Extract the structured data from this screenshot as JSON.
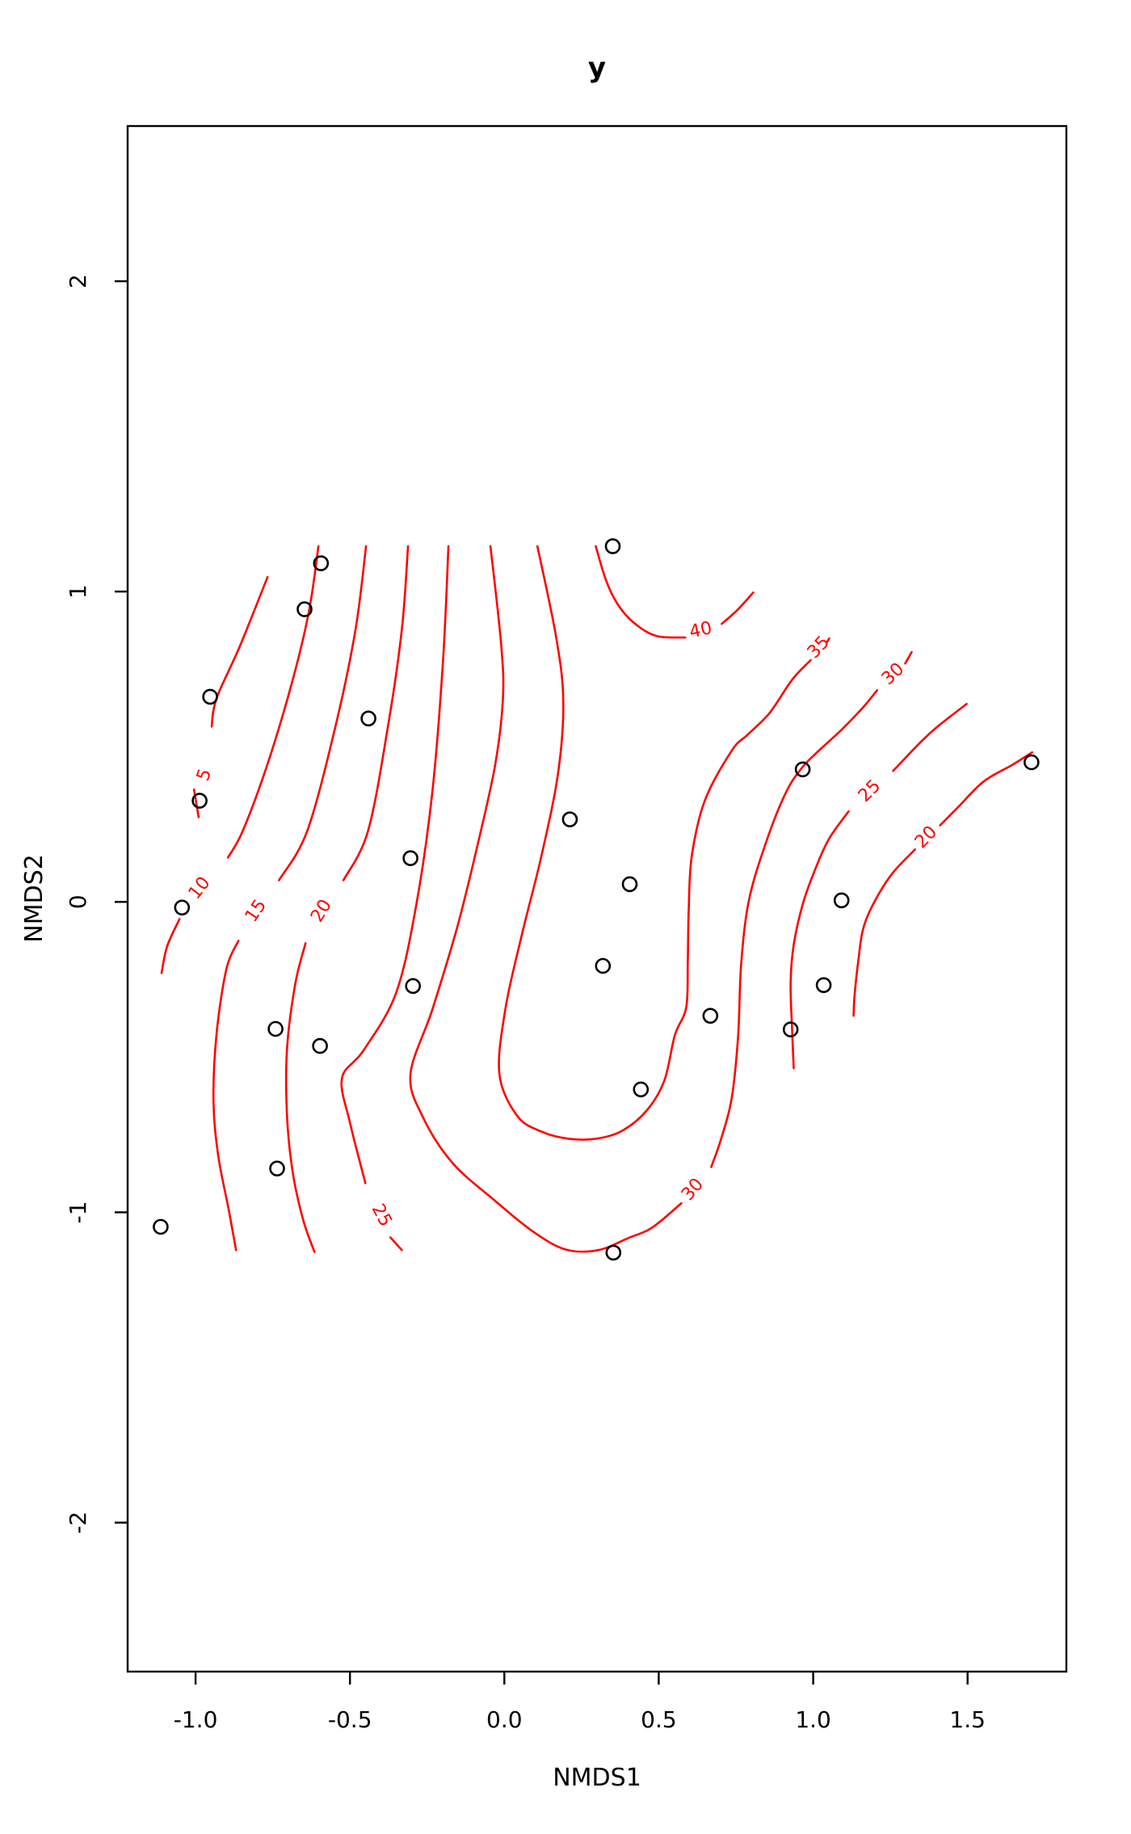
{
  "title": "y",
  "chart_data": {
    "type": "scatter",
    "subtype": "nmds-ordination-with-fitted-surface-contours",
    "title": "y",
    "xlabel": "NMDS1",
    "ylabel": "NMDS2",
    "xlim": [
      -1.22,
      1.82
    ],
    "ylim": [
      -2.48,
      2.5
    ],
    "xtick_values": [
      -1.0,
      -0.5,
      0.0,
      0.5,
      1.0,
      1.5
    ],
    "xtick_labels": [
      "-1.0",
      "-0.5",
      "0.0",
      "0.5",
      "1.0",
      "1.5"
    ],
    "ytick_values": [
      2,
      1,
      0,
      -1,
      -2
    ],
    "ytick_labels": [
      "2",
      "1",
      "0",
      "-1",
      "-2"
    ],
    "grid": false,
    "legend_position": "none",
    "point_style": {
      "shape": "open-circle",
      "color": "#000000"
    },
    "contour_color": "#ff0000",
    "contour_levels": [
      5,
      10,
      15,
      20,
      25,
      30,
      35,
      40
    ],
    "points": [
      [
        0.351,
        1.146
      ],
      [
        -0.594,
        1.091
      ],
      [
        -0.647,
        0.943
      ],
      [
        -0.953,
        0.661
      ],
      [
        -0.44,
        0.591
      ],
      [
        -0.987,
        0.326
      ],
      [
        0.212,
        0.266
      ],
      [
        -0.304,
        0.141
      ],
      [
        -1.044,
        -0.018
      ],
      [
        0.406,
        0.057
      ],
      [
        0.319,
        -0.206
      ],
      [
        -0.296,
        -0.271
      ],
      [
        0.667,
        -0.367
      ],
      [
        -0.741,
        -0.409
      ],
      [
        -0.597,
        -0.464
      ],
      [
        0.927,
        -0.411
      ],
      [
        1.034,
        -0.268
      ],
      [
        0.966,
        0.427
      ],
      [
        1.092,
        0.005
      ],
      [
        0.442,
        -0.604
      ],
      [
        -0.736,
        -0.859
      ],
      [
        0.353,
        -1.13
      ],
      [
        -1.113,
        -1.047
      ],
      [
        1.707,
        0.45
      ]
    ],
    "contours": [
      {
        "level": 5,
        "segments": [
          [
            [
              -0.767,
              1.047
            ],
            [
              -0.856,
              0.825
            ],
            [
              -0.932,
              0.656
            ],
            [
              -0.948,
              0.565
            ]
          ],
          [
            [
              -1.005,
              0.362
            ],
            [
              -0.99,
              0.273
            ]
          ]
        ],
        "labels": [
          {
            "text": "5",
            "x": -0.971,
            "y": 0.409,
            "rot": -70
          }
        ]
      },
      {
        "level": 10,
        "segments": [
          [
            [
              -0.602,
              1.146
            ],
            [
              -0.634,
              0.93
            ],
            [
              -0.691,
              0.695
            ],
            [
              -0.77,
              0.435
            ],
            [
              -0.848,
              0.227
            ],
            [
              -0.895,
              0.143
            ]
          ],
          [
            [
              -1.052,
              -0.055
            ],
            [
              -1.092,
              -0.143
            ],
            [
              -1.11,
              -0.229
            ]
          ]
        ],
        "labels": [
          {
            "text": "10",
            "x": -0.987,
            "y": 0.044,
            "rot": -52
          }
        ]
      },
      {
        "level": 15,
        "segments": [
          [
            [
              -0.448,
              1.146
            ],
            [
              -0.482,
              0.878
            ],
            [
              -0.547,
              0.565
            ],
            [
              -0.639,
              0.227
            ],
            [
              -0.73,
              0.07
            ]
          ],
          [
            [
              -0.861,
              -0.125
            ],
            [
              -0.9,
              -0.216
            ],
            [
              -0.932,
              -0.424
            ],
            [
              -0.942,
              -0.641
            ],
            [
              -0.927,
              -0.815
            ],
            [
              -0.893,
              -0.99
            ],
            [
              -0.869,
              -1.122
            ]
          ]
        ],
        "labels": [
          {
            "text": "15",
            "x": -0.804,
            "y": -0.029,
            "rot": -56
          }
        ]
      },
      {
        "level": 20,
        "segments": [
          [
            [
              -0.312,
              1.146
            ],
            [
              -0.332,
              0.878
            ],
            [
              -0.377,
              0.565
            ],
            [
              -0.442,
              0.227
            ],
            [
              -0.521,
              0.07
            ]
          ],
          [
            [
              -0.644,
              -0.133
            ],
            [
              -0.678,
              -0.268
            ],
            [
              -0.704,
              -0.477
            ],
            [
              -0.704,
              -0.685
            ],
            [
              -0.686,
              -0.867
            ],
            [
              -0.652,
              -1.023
            ],
            [
              -0.615,
              -1.128
            ]
          ]
        ],
        "labels": [
          {
            "text": "20",
            "x": -0.592,
            "y": -0.029,
            "rot": -59
          }
        ]
      },
      {
        "level": 25,
        "segments": [
          [
            [
              -0.181,
              1.146
            ],
            [
              -0.199,
              0.773
            ],
            [
              -0.233,
              0.357
            ],
            [
              -0.285,
              -0.008
            ],
            [
              -0.351,
              -0.294
            ],
            [
              -0.455,
              -0.477
            ],
            [
              -0.526,
              -0.568
            ],
            [
              -0.5,
              -0.711
            ],
            [
              -0.45,
              -0.906
            ]
          ],
          [
            [
              -0.369,
              -1.081
            ],
            [
              -0.332,
              -1.122
            ]
          ]
        ],
        "labels": [
          {
            "text": "25",
            "x": -0.398,
            "y": -1.01,
            "rot": 62
          }
        ]
      },
      {
        "level": 30,
        "segments": [
          [
            [
              -0.045,
              1.146
            ],
            [
              -0.01,
              0.825
            ],
            [
              -0.005,
              0.648
            ],
            [
              -0.031,
              0.435
            ],
            [
              -0.089,
              0.174
            ],
            [
              -0.154,
              -0.086
            ],
            [
              -0.233,
              -0.346
            ],
            [
              -0.304,
              -0.555
            ],
            [
              -0.264,
              -0.693
            ],
            [
              -0.168,
              -0.841
            ],
            [
              -0.029,
              -0.964
            ],
            [
              0.094,
              -1.063
            ],
            [
              0.199,
              -1.12
            ],
            [
              0.304,
              -1.122
            ],
            [
              0.401,
              -1.083
            ],
            [
              0.479,
              -1.049
            ],
            [
              0.573,
              -0.971
            ]
          ],
          [
            [
              0.67,
              -0.854
            ],
            [
              0.702,
              -0.763
            ],
            [
              0.736,
              -0.633
            ],
            [
              0.757,
              -0.432
            ],
            [
              0.767,
              -0.198
            ],
            [
              0.793,
              0.01
            ],
            [
              0.853,
              0.208
            ],
            [
              0.914,
              0.357
            ],
            [
              0.966,
              0.435
            ],
            [
              1.018,
              0.487
            ],
            [
              1.089,
              0.552
            ],
            [
              1.16,
              0.625
            ],
            [
              1.207,
              0.682
            ]
          ],
          [
            [
              1.298,
              0.768
            ],
            [
              1.319,
              0.805
            ]
          ]
        ],
        "labels": [
          {
            "text": "30",
            "x": 0.61,
            "y": -0.927,
            "rot": -50
          },
          {
            "text": "30",
            "x": 1.259,
            "y": 0.734,
            "rot": -43
          }
        ]
      },
      {
        "level": 35,
        "segments": [
          [
            [
              0.107,
              1.146
            ],
            [
              0.168,
              0.852
            ],
            [
              0.191,
              0.643
            ],
            [
              0.173,
              0.409
            ],
            [
              0.12,
              0.148
            ],
            [
              0.055,
              -0.112
            ],
            [
              0.003,
              -0.346
            ],
            [
              -0.016,
              -0.555
            ],
            [
              0.042,
              -0.69
            ],
            [
              0.12,
              -0.74
            ],
            [
              0.207,
              -0.763
            ],
            [
              0.298,
              -0.763
            ],
            [
              0.382,
              -0.737
            ],
            [
              0.461,
              -0.672
            ],
            [
              0.518,
              -0.576
            ],
            [
              0.552,
              -0.43
            ],
            [
              0.589,
              -0.339
            ],
            [
              0.594,
              -0.19
            ],
            [
              0.597,
              -0.026
            ],
            [
              0.607,
              0.148
            ],
            [
              0.649,
              0.326
            ],
            [
              0.736,
              0.487
            ],
            [
              0.788,
              0.539
            ],
            [
              0.859,
              0.609
            ],
            [
              0.932,
              0.716
            ],
            [
              0.992,
              0.779
            ]
          ],
          [
            [
              1.045,
              0.838
            ],
            [
              1.052,
              0.849
            ]
          ]
        ],
        "labels": [
          {
            "text": "35",
            "x": 1.018,
            "y": 0.82,
            "rot": -47
          }
        ]
      },
      {
        "level": 40,
        "segments": [
          [
            [
              0.296,
              1.146
            ],
            [
              0.33,
              1.034
            ],
            [
              0.369,
              0.956
            ],
            [
              0.421,
              0.898
            ],
            [
              0.492,
              0.857
            ],
            [
              0.586,
              0.852
            ]
          ],
          [
            [
              0.704,
              0.896
            ],
            [
              0.754,
              0.94
            ],
            [
              0.806,
              0.997
            ]
          ]
        ],
        "labels": [
          {
            "text": "40",
            "x": 0.636,
            "y": 0.875,
            "rot": -12
          }
        ]
      },
      {
        "level": 25,
        "segments": [
          [
            [
              1.497,
              0.638
            ],
            [
              1.403,
              0.565
            ],
            [
              1.346,
              0.513
            ],
            [
              1.259,
              0.422
            ]
          ],
          [
            [
              1.115,
              0.292
            ],
            [
              1.05,
              0.201
            ],
            [
              1.003,
              0.096
            ],
            [
              0.966,
              -0.008
            ],
            [
              0.937,
              -0.138
            ],
            [
              0.927,
              -0.26
            ],
            [
              0.932,
              -0.417
            ],
            [
              0.937,
              -0.536
            ]
          ]
        ],
        "labels": [
          {
            "text": "25",
            "x": 1.183,
            "y": 0.357,
            "rot": -45
          }
        ]
      },
      {
        "level": 20,
        "segments": [
          [
            [
              1.709,
              0.482
            ],
            [
              1.647,
              0.443
            ],
            [
              1.552,
              0.388
            ],
            [
              1.469,
              0.305
            ],
            [
              1.411,
              0.247
            ]
          ],
          [
            [
              1.33,
              0.169
            ],
            [
              1.254,
              0.089
            ],
            [
              1.194,
              -0.008
            ],
            [
              1.162,
              -0.086
            ],
            [
              1.147,
              -0.182
            ],
            [
              1.134,
              -0.302
            ],
            [
              1.131,
              -0.367
            ]
          ]
        ],
        "labels": [
          {
            "text": "20",
            "x": 1.366,
            "y": 0.208,
            "rot": -46
          }
        ]
      }
    ]
  }
}
